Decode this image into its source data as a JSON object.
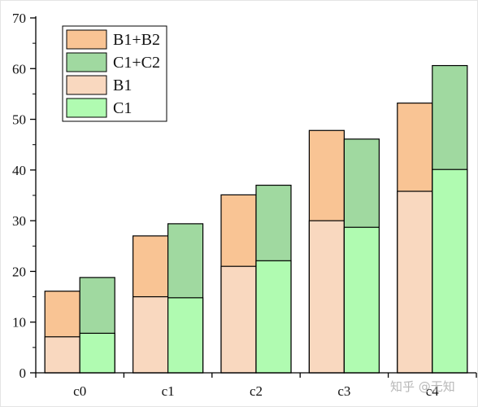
{
  "chart_data": {
    "type": "bar",
    "categories": [
      "c0",
      "c1",
      "c2",
      "c3",
      "c4"
    ],
    "groups": [
      {
        "stack": "B",
        "layers": [
          {
            "name": "B1",
            "values": [
              7.1,
              15.0,
              21.0,
              30.0,
              35.8
            ],
            "color": "#f9d8bf"
          },
          {
            "name": "B1+B2",
            "values": [
              16.1,
              27.0,
              35.1,
              47.8,
              53.2
            ],
            "color": "#f9c494"
          }
        ]
      },
      {
        "stack": "C",
        "layers": [
          {
            "name": "C1",
            "values": [
              7.8,
              14.8,
              22.1,
              28.7,
              40.1
            ],
            "color": "#b0fbb1"
          },
          {
            "name": "C1+C2",
            "values": [
              18.8,
              29.4,
              37.0,
              46.1,
              60.6
            ],
            "color": "#a0d9a0"
          }
        ]
      }
    ],
    "legend": [
      {
        "label": "B1+B2",
        "color": "#f9c494"
      },
      {
        "label": "C1+C2",
        "color": "#a0d9a0"
      },
      {
        "label": "B1",
        "color": "#f9d8bf"
      },
      {
        "label": "C1",
        "color": "#b0fbb1"
      }
    ],
    "legend_position": "top-left",
    "ylim": [
      0,
      70
    ],
    "yticks": [
      "0",
      "10",
      "20",
      "30",
      "40",
      "50",
      "60",
      "70"
    ],
    "title": "",
    "xlabel": "",
    "ylabel": "",
    "grid": false,
    "watermark": "知乎 @无知"
  }
}
